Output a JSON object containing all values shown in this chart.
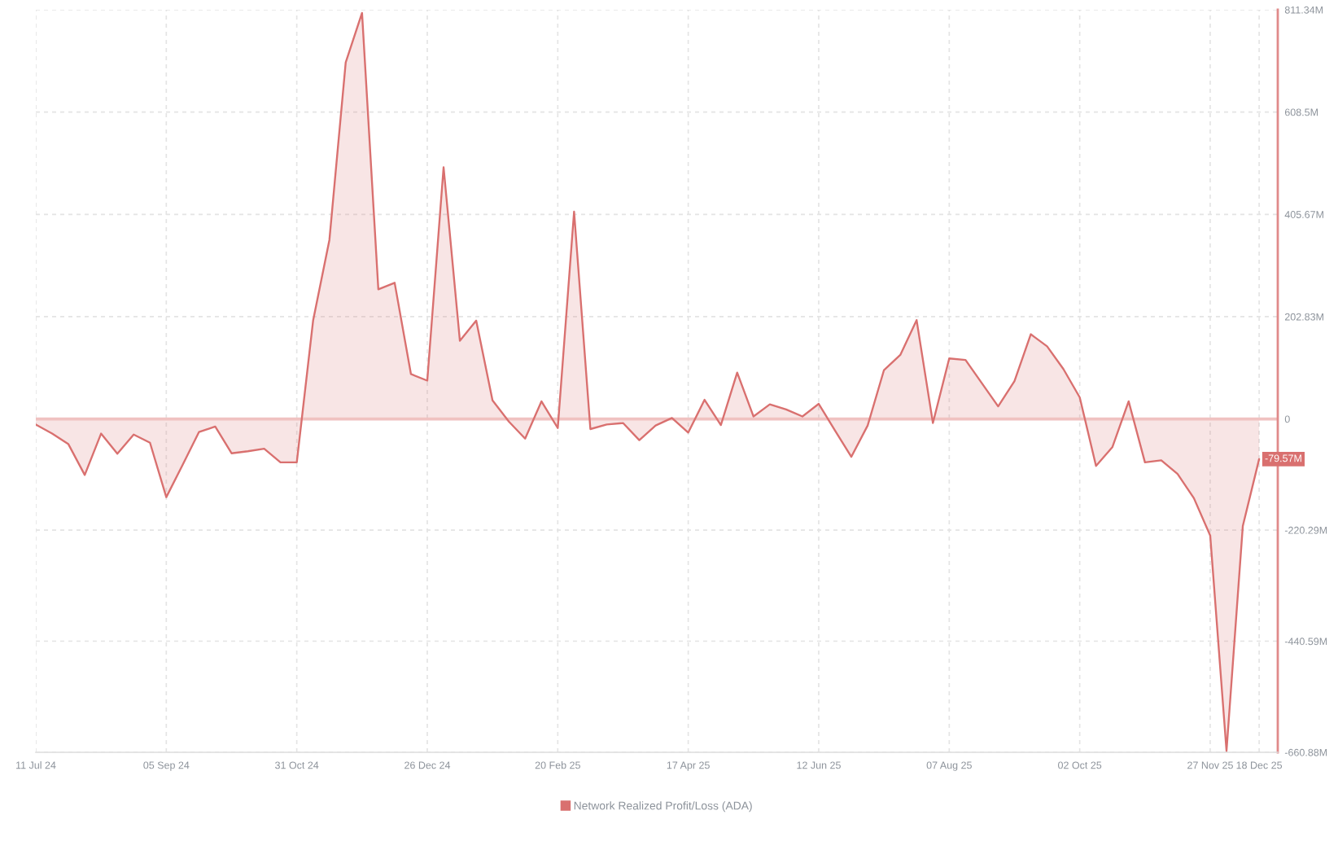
{
  "chart_data": {
    "type": "area",
    "x": [
      "2024-07-11",
      "2024-07-18",
      "2024-07-25",
      "2024-08-01",
      "2024-08-08",
      "2024-08-15",
      "2024-08-22",
      "2024-08-29",
      "2024-09-05",
      "2024-09-12",
      "2024-09-19",
      "2024-09-26",
      "2024-10-03",
      "2024-10-10",
      "2024-10-17",
      "2024-10-24",
      "2024-10-31",
      "2024-11-07",
      "2024-11-14",
      "2024-11-21",
      "2024-11-28",
      "2024-12-05",
      "2024-12-12",
      "2024-12-19",
      "2024-12-26",
      "2025-01-02",
      "2025-01-09",
      "2025-01-16",
      "2025-01-23",
      "2025-01-30",
      "2025-02-06",
      "2025-02-13",
      "2025-02-20",
      "2025-02-27",
      "2025-03-06",
      "2025-03-13",
      "2025-03-20",
      "2025-03-27",
      "2025-04-03",
      "2025-04-10",
      "2025-04-17",
      "2025-04-24",
      "2025-05-01",
      "2025-05-08",
      "2025-05-15",
      "2025-05-22",
      "2025-05-29",
      "2025-06-05",
      "2025-06-12",
      "2025-06-19",
      "2025-06-26",
      "2025-07-03",
      "2025-07-10",
      "2025-07-17",
      "2025-07-24",
      "2025-07-31",
      "2025-08-07",
      "2025-08-14",
      "2025-08-21",
      "2025-08-28",
      "2025-09-04",
      "2025-09-11",
      "2025-09-18",
      "2025-09-25",
      "2025-10-02",
      "2025-10-09",
      "2025-10-16",
      "2025-10-23",
      "2025-10-30",
      "2025-11-06",
      "2025-11-13",
      "2025-11-20",
      "2025-11-27",
      "2025-12-04",
      "2025-12-11",
      "2025-12-18"
    ],
    "series": [
      {
        "name": "Network Realized Profit/Loss (ADA)",
        "color": "#d9706f",
        "values": [
          -11,
          -29,
          -50,
          -111,
          -29,
          -69,
          -31,
          -47,
          -155,
          -91,
          -26,
          -15,
          -68,
          -64,
          -59,
          -86,
          -86,
          195,
          355,
          707,
          805,
          257,
          270,
          89,
          76,
          499,
          155,
          195,
          37,
          -5,
          -39,
          35,
          -18,
          411,
          -20,
          -11,
          -8,
          -42,
          -13,
          2,
          -27,
          38,
          -12,
          92,
          5,
          29,
          19,
          5,
          30,
          -23,
          -75,
          -13,
          97,
          127,
          196,
          -8,
          120,
          117,
          71,
          25,
          75,
          168,
          144,
          99,
          43,
          -93,
          -56,
          35,
          -86,
          -82,
          -109,
          -157,
          -231,
          -658,
          -212,
          -79.57
        ],
        "value_labels": [
          null,
          null,
          null,
          null,
          null,
          null,
          null,
          null,
          null,
          null,
          null,
          null,
          null,
          null,
          null,
          null,
          null,
          null,
          null,
          null,
          null,
          null,
          null,
          null,
          null,
          null,
          null,
          null,
          null,
          null,
          null,
          null,
          null,
          null,
          null,
          null,
          null,
          null,
          null,
          null,
          null,
          null,
          null,
          null,
          null,
          null,
          null,
          null,
          null,
          null,
          null,
          null,
          null,
          null,
          null,
          null,
          null,
          null,
          null,
          null,
          null,
          null,
          null,
          null,
          null,
          null,
          null,
          null,
          null,
          null,
          null,
          null,
          null,
          null,
          null,
          "-79.57M"
        ]
      }
    ],
    "ref_lines": [
      {
        "axis": "y",
        "value": 0,
        "color": "#f0c2c1"
      }
    ],
    "xlim": [
      "2024-07-11",
      "2025-12-26"
    ],
    "xticks": [
      {
        "value": "2024-07-11",
        "label": "11 Jul 24"
      },
      {
        "value": "2024-09-05",
        "label": "05 Sep 24"
      },
      {
        "value": "2024-10-31",
        "label": "31 Oct 24"
      },
      {
        "value": "2024-12-26",
        "label": "26 Dec 24"
      },
      {
        "value": "2025-02-20",
        "label": "20 Feb 25"
      },
      {
        "value": "2025-04-17",
        "label": "17 Apr 25"
      },
      {
        "value": "2025-06-12",
        "label": "12 Jun 25"
      },
      {
        "value": "2025-08-07",
        "label": "07 Aug 25"
      },
      {
        "value": "2025-10-02",
        "label": "02 Oct 25"
      },
      {
        "value": "2025-11-27",
        "label": "27 Nov 25"
      },
      {
        "value": "2025-12-18",
        "label": "18 Dec 25"
      }
    ],
    "ylim": [
      -660.88,
      811.34
    ],
    "yticks": [
      {
        "value": 811.34,
        "label": "811.34M"
      },
      {
        "value": 608.5,
        "label": "608.5M"
      },
      {
        "value": 405.67,
        "label": "405.67M"
      },
      {
        "value": 202.83,
        "label": "202.83M"
      },
      0,
      {
        "value": -220.29,
        "label": "-220.29M"
      },
      {
        "value": -440.59,
        "label": "-440.59M"
      },
      {
        "value": -660.88,
        "label": "-660.88M"
      }
    ],
    "grid": true,
    "legend": "bottom"
  }
}
